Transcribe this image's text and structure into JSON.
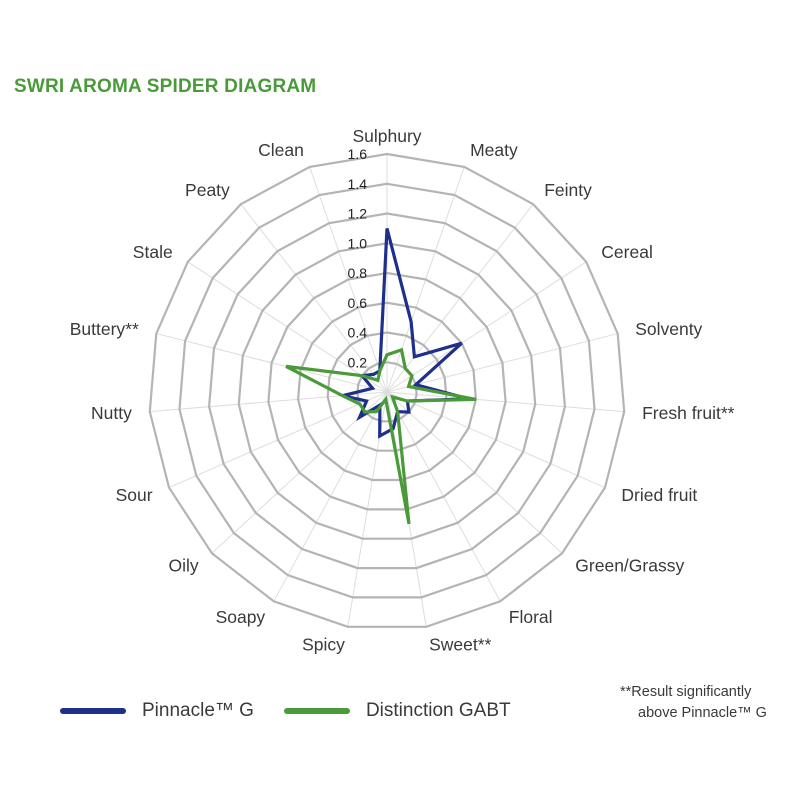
{
  "title": "SWRI AROMA SPIDER DIAGRAM",
  "colors": {
    "title": "#4a9a3a",
    "grid": "#b4b4b4",
    "spoke": "#dddddd",
    "tick_text": "#222222",
    "axis_text": "#3a3a3a"
  },
  "legend": {
    "series1": "Pinnacle™ G",
    "series2": "Distinction GABT"
  },
  "note": {
    "line1": "**Result significantly",
    "line2": "above Pinnacle™ G"
  },
  "chart_data": {
    "type": "radar",
    "categories": [
      "Sulphury",
      "Meaty",
      "Feinty",
      "Cereal",
      "Solventy",
      "Fresh fruit**",
      "Dried fruit",
      "Green/Grassy",
      "Floral",
      "Sweet**",
      "Spicy",
      "Soapy",
      "Oily",
      "Sour",
      "Nutty",
      "Buttery**",
      "Stale",
      "Peaty",
      "Clean"
    ],
    "ticks": [
      "0.2",
      "0.4",
      "0.6",
      "0.8",
      "1.0",
      "1.2",
      "1.4",
      "1.6"
    ],
    "rlim": [
      0,
      1.6
    ],
    "grid": true,
    "legend_position": "bottom-left",
    "series": [
      {
        "name": "Pinnacle™ G",
        "color": "#1f2f8c",
        "values": [
          1.1,
          0.5,
          0.3,
          0.6,
          0.2,
          0.55,
          0.15,
          0.2,
          0.15,
          0.25,
          0.3,
          0.1,
          0.25,
          0.15,
          0.3,
          0.1,
          0.2,
          0.15,
          0.15
        ]
      },
      {
        "name": "Distinction GABT",
        "color": "#4a9a3a",
        "values": [
          0.25,
          0.3,
          0.2,
          0.2,
          0.15,
          0.6,
          0.15,
          0.05,
          0.15,
          0.9,
          0.05,
          0.15,
          0.2,
          0.2,
          0.3,
          0.7,
          0.2,
          0.1,
          0.15
        ]
      }
    ]
  }
}
